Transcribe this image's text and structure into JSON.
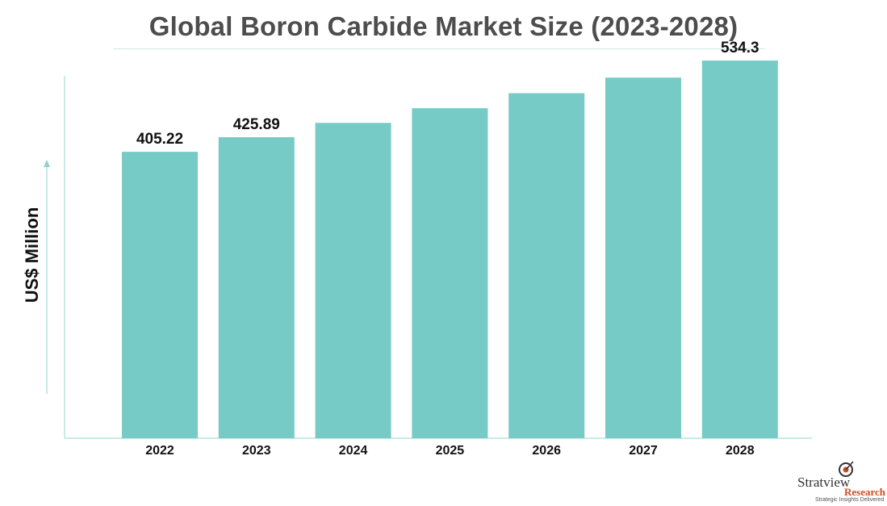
{
  "chart_data": {
    "type": "bar",
    "title": "Global Boron Carbide Market Size (2023-2028)",
    "ylabel": "US$ Million",
    "xlabel": "",
    "categories": [
      "2022",
      "2023",
      "2024",
      "2025",
      "2026",
      "2027",
      "2028"
    ],
    "values": [
      405.22,
      425.89,
      446.1,
      466.9,
      488.1,
      510.2,
      534.3
    ],
    "data_labels": [
      "405.22",
      "425.89",
      "",
      "",
      "",
      "",
      "534.3"
    ],
    "ylim": [
      0,
      620
    ],
    "grid": false,
    "bar_color": "#76cbc6",
    "axis_color": "#b9e3df"
  },
  "logo": {
    "name": "Stratview",
    "sub": "Research",
    "tagline": "Strategic Insights Delivered",
    "accent": "#d24a22"
  }
}
